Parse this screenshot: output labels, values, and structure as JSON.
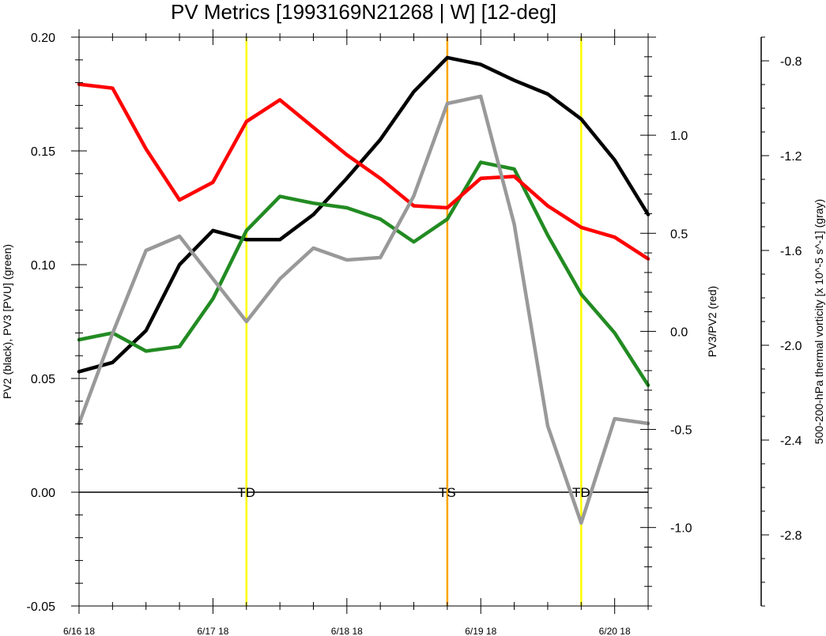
{
  "chart_data": {
    "type": "line",
    "title": "PV Metrics [1993169N21268 | W] [12-deg]",
    "x_tick_labels": [
      "6/16 18",
      "6/17 18",
      "6/18 18",
      "6/19 18",
      "6/20 18"
    ],
    "x_ticks": [
      0,
      4,
      8,
      12,
      16
    ],
    "x_range": [
      0,
      17
    ],
    "left_axis": {
      "label": "PV2 (black), PV3 [PVU] (green)",
      "range": [
        -0.05,
        0.2
      ],
      "ticks": [
        "-0.05",
        "0.00",
        "0.05",
        "0.10",
        "0.15",
        "0.20"
      ],
      "tick_values": [
        -0.05,
        0.0,
        0.05,
        0.1,
        0.15,
        0.2
      ]
    },
    "right_axis": {
      "label": "PV3/PV2 (red)",
      "range": [
        -1.4,
        1.5
      ],
      "ticks": [
        "-1.0",
        "-0.5",
        "0.0",
        "0.5",
        "1.0"
      ],
      "tick_values": [
        -1.0,
        -0.5,
        0.0,
        0.5,
        1.0
      ]
    },
    "far_right_axis": {
      "label": "500-200-hPa thermal vorticity [x 10^-5 s^-1] (gray)",
      "range": [
        -3.1,
        -0.7
      ],
      "ticks": [
        "-2.8",
        "-2.4",
        "-2.0",
        "-1.6",
        "-1.2",
        "-0.8"
      ],
      "tick_values": [
        -2.8,
        -2.4,
        -2.0,
        -1.6,
        -1.2,
        -0.8
      ]
    },
    "series": [
      {
        "axis": "left",
        "color": "#000000",
        "x": [
          0,
          1,
          2,
          3,
          4,
          5,
          6,
          7,
          8,
          9,
          10,
          11,
          12,
          13,
          14,
          15,
          16,
          17
        ],
        "values": [
          0.053,
          0.057,
          0.071,
          0.1,
          0.115,
          0.111,
          0.111,
          0.122,
          0.138,
          0.155,
          0.176,
          0.191,
          0.188,
          0.181,
          0.175,
          0.164,
          0.146,
          0.122
        ]
      },
      {
        "axis": "left",
        "color": "#228B22",
        "x": [
          0,
          1,
          2,
          3,
          4,
          5,
          6,
          7,
          8,
          9,
          10,
          11,
          12,
          13,
          14,
          15,
          16,
          17
        ],
        "values": [
          0.067,
          0.07,
          0.062,
          0.064,
          0.085,
          0.115,
          0.13,
          0.127,
          0.125,
          0.12,
          0.11,
          0.12,
          0.145,
          0.142,
          0.113,
          0.087,
          0.07,
          0.047
        ]
      },
      {
        "axis": "right",
        "color": "#ff0000",
        "x": [
          0,
          1,
          2,
          3,
          4,
          5,
          6,
          7,
          8,
          9,
          10,
          11,
          12,
          13,
          14,
          15,
          16,
          17
        ],
        "values": [
          1.26,
          1.24,
          0.93,
          0.67,
          0.76,
          1.07,
          1.18,
          1.04,
          0.9,
          0.78,
          0.64,
          0.63,
          0.78,
          0.79,
          0.64,
          0.53,
          0.48,
          0.37
        ]
      },
      {
        "axis": "far_right",
        "color": "#999999",
        "x": [
          0,
          1,
          2,
          3,
          4,
          5,
          6,
          7,
          8,
          9,
          10,
          11,
          12,
          13,
          14,
          15,
          16,
          17
        ],
        "values": [
          -2.33,
          -1.95,
          -1.6,
          -1.54,
          -1.72,
          -1.9,
          -1.72,
          -1.59,
          -1.64,
          -1.63,
          -1.37,
          -0.98,
          -0.95,
          -1.49,
          -2.34,
          -2.75,
          -2.31,
          -2.33
        ]
      }
    ],
    "vertical_lines": [
      {
        "x": 5,
        "color": "#ffff00",
        "label": "TD"
      },
      {
        "x": 11,
        "color": "#ffa500",
        "label": "TS"
      },
      {
        "x": 15,
        "color": "#ffff00",
        "label": "TD"
      }
    ]
  }
}
